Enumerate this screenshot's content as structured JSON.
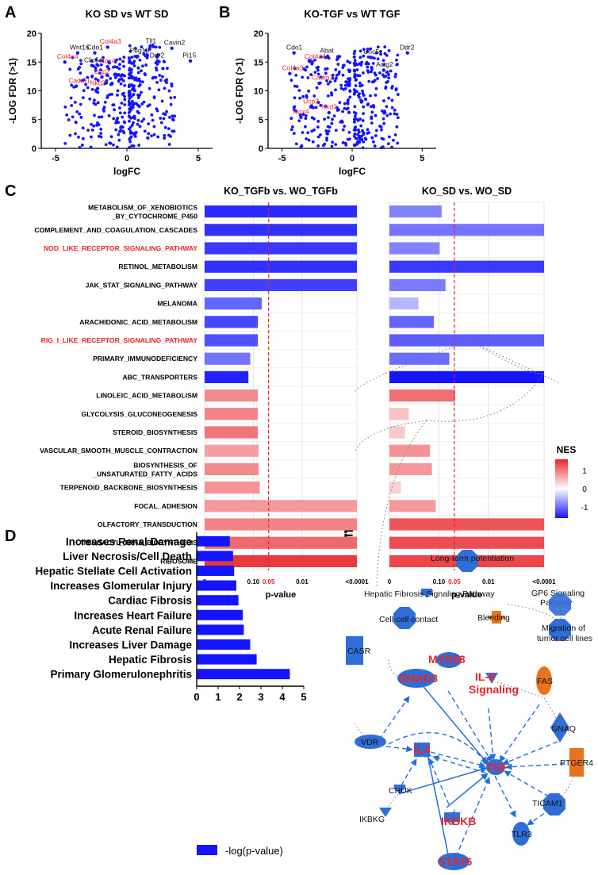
{
  "panel_letters": {
    "a": "A",
    "b": "B",
    "c": "C",
    "d": "D",
    "e": "E"
  },
  "colors": {
    "blue": "#1414ff",
    "red": "#e8242a",
    "grid": "#dcdcdc",
    "node_blue": "#2f6ed6",
    "node_orange": "#e8731a"
  },
  "chart_data": [
    {
      "id": "A",
      "type": "scatter",
      "title": "KO SD vs WT SD",
      "xlabel": "logFC",
      "ylabel": "-LOG FDR (>1)",
      "xlim": [
        -6,
        6
      ],
      "ylim": [
        0,
        20
      ],
      "xticks": [
        -5,
        0,
        5
      ],
      "yticks": [
        0,
        5,
        10,
        15,
        20
      ],
      "labels": [
        {
          "text": "Wnt16",
          "x": -4.0,
          "y": 17.2,
          "color": "black"
        },
        {
          "text": "Cdo1",
          "x": -2.8,
          "y": 17.2,
          "color": "black"
        },
        {
          "text": "Col4a3",
          "x": -1.9,
          "y": 18.2,
          "color": "red"
        },
        {
          "text": "Col4a4",
          "x": -4.9,
          "y": 15.6,
          "color": "red"
        },
        {
          "text": "Clic5",
          "x": -3.0,
          "y": 15.0,
          "color": "black"
        },
        {
          "text": "Nox4",
          "x": -1.9,
          "y": 14.8,
          "color": "red"
        },
        {
          "text": "Ucp2",
          "x": -2.3,
          "y": 13.0,
          "color": "red"
        },
        {
          "text": "Cadm1",
          "x": -4.1,
          "y": 11.4,
          "color": "red"
        },
        {
          "text": "Nkd2",
          "x": -2.6,
          "y": 11.0,
          "color": "red"
        },
        {
          "text": "Tll1",
          "x": 1.3,
          "y": 18.3,
          "color": "black"
        },
        {
          "text": "Cavin2",
          "x": 2.6,
          "y": 18.0,
          "color": "black"
        },
        {
          "text": "Peg10",
          "x": 0.2,
          "y": 16.6,
          "color": "black"
        },
        {
          "text": "Ddr2",
          "x": 1.6,
          "y": 15.8,
          "color": "black"
        },
        {
          "text": "Pi15",
          "x": 3.9,
          "y": 15.8,
          "color": "black"
        }
      ]
    },
    {
      "id": "B",
      "type": "scatter",
      "title": "KO-TGF vs WT TGF",
      "xlabel": "logFC",
      "ylabel": "-LOG FDR (>1)",
      "xlim": [
        -6,
        6
      ],
      "ylim": [
        0,
        20
      ],
      "xticks": [
        -5,
        0,
        5
      ],
      "yticks": [
        0,
        5,
        10,
        15,
        20
      ],
      "labels": [
        {
          "text": "Cdo1",
          "x": -4.7,
          "y": 17.2,
          "color": "black"
        },
        {
          "text": "Abat",
          "x": -2.3,
          "y": 16.6,
          "color": "black"
        },
        {
          "text": "Col4a4",
          "x": -3.4,
          "y": 15.6,
          "color": "red"
        },
        {
          "text": "Col4a3",
          "x": -5.0,
          "y": 13.6,
          "color": "red"
        },
        {
          "text": "Unc5",
          "x": 0.8,
          "y": 16.4,
          "color": "black"
        },
        {
          "text": "Ddr2",
          "x": 3.4,
          "y": 17.2,
          "color": "black"
        },
        {
          "text": "Actg2",
          "x": 1.7,
          "y": 14.2,
          "color": "black"
        },
        {
          "text": "Cadm1",
          "x": -2.9,
          "y": 11.9,
          "color": "red"
        },
        {
          "text": "Ucp2",
          "x": -3.5,
          "y": 7.8,
          "color": "red"
        },
        {
          "text": "Nkd2",
          "x": -2.2,
          "y": 6.8,
          "color": "red"
        },
        {
          "text": "Nox4",
          "x": -4.2,
          "y": 6.0,
          "color": "red"
        }
      ]
    },
    {
      "id": "C",
      "type": "bar",
      "orientation": "horizontal",
      "xlabel": "p-value",
      "xtick_labels": [
        "0",
        "0.10",
        "0.05",
        "0.01",
        "<0.0001"
      ],
      "categories": [
        {
          "name": "METABOLISM_OF_XENOBIOTICS_BY_CYTOCHROME_P450",
          "line1": "METABOLISM_OF_XENOBIOTICS",
          "line2": "_BY_CYTOCHROME_P450",
          "highlight": false
        },
        {
          "name": "COMPLEMENT_AND_COAGULATION_CASCADES",
          "line1": "COMPLEMENT_AND_COAGULATION_CASCADES",
          "line2": "",
          "highlight": false
        },
        {
          "name": "NOD_LIKE_RECEPTOR_SIGNALING_PATHWAY",
          "line1": "NOD_LIKE_RECEPTOR_SIGNALING_PATHWAY",
          "line2": "",
          "highlight": true
        },
        {
          "name": "RETINOL_METABOLISM",
          "line1": "RETINOL_METABOLISM",
          "line2": "",
          "highlight": false
        },
        {
          "name": "JAK_STAT_SIGNALING_PATHWAY",
          "line1": "JAK_STAT_SIGNALING_PATHWAY",
          "line2": "",
          "highlight": false
        },
        {
          "name": "MELANOMA",
          "line1": "MELANOMA",
          "line2": "",
          "highlight": false
        },
        {
          "name": "ARACHIDONIC_ACID_METABOLISM",
          "line1": "ARACHIDONIC_ACID_METABOLISM",
          "line2": "",
          "highlight": false
        },
        {
          "name": "RIG_I_LIKE_RECEPTOR_SIGNALING_PATHWAY",
          "line1": "RIG_I_LIKE_RECEPTOR_SIGNALING_PATHWAY",
          "line2": "",
          "highlight": true
        },
        {
          "name": "PRIMARY_IMMUNODEFICIENCY",
          "line1": "PRIMARY_IMMUNODEFICIENCY",
          "line2": "",
          "highlight": false
        },
        {
          "name": "ABC_TRANSPORTERS",
          "line1": "ABC_TRANSPORTERS",
          "line2": "",
          "highlight": false
        },
        {
          "name": "LINOLEIC_ACID_METABOLISM",
          "line1": "LINOLEIC_ACID_METABOLISM",
          "line2": "",
          "highlight": false
        },
        {
          "name": "GLYCOLYSIS_GLUCONEOGENESIS",
          "line1": "GLYCOLYSIS_GLUCONEOGENESIS",
          "line2": "",
          "highlight": false
        },
        {
          "name": "STEROID_BIOSYNTHESIS",
          "line1": "STEROID_BIOSYNTHESIS",
          "line2": "",
          "highlight": false
        },
        {
          "name": "VASCULAR_SMOOTH_MUSCLE_CONTRACTION",
          "line1": "VASCULAR_SMOOTH_MUSCLE_CONTRACTION",
          "line2": "",
          "highlight": false
        },
        {
          "name": "BIOSYNTHESIS_OF_UNSATURATED_FATTY_ACIDS",
          "line1": "BIOSYNTHESIS_OF",
          "line2": "_UNSATURATED_FATTY_ACIDS",
          "highlight": false
        },
        {
          "name": "TERPENOID_BACKBONE_BIOSYNTHESIS",
          "line1": "TERPENOID_BACKBONE_BIOSYNTHESIS",
          "line2": "",
          "highlight": false
        },
        {
          "name": "FOCAL_ADHESION",
          "line1": "FOCAL_ADHESION",
          "line2": "",
          "highlight": false
        },
        {
          "name": "OLFACTORY_TRANSDUCTION",
          "line1": "OLFACTORY_TRANSDUCTION",
          "line2": "",
          "highlight": false
        },
        {
          "name": "AMINOACYL_TRNA_BIOSYNTHESIS",
          "line1": "AMINOACYL_TRNA_BIOSYNTHESIS",
          "line2": "",
          "highlight": false
        },
        {
          "name": "RIBOSOME",
          "line1": "RIBOSOME",
          "line2": "",
          "highlight": false
        }
      ],
      "series": [
        {
          "name": "KO_TGFb vs. WO_TGFb",
          "values": [
            4.0,
            4.0,
            4.0,
            4.0,
            4.0,
            1.5,
            1.4,
            1.4,
            1.2,
            1.15,
            1.4,
            1.4,
            1.4,
            1.42,
            1.42,
            1.45,
            4.0,
            4.0,
            4.0,
            4.0
          ],
          "nes": [
            -1.45,
            -1.4,
            -1.35,
            -1.4,
            -1.3,
            -1.05,
            -1.25,
            -1.2,
            -0.95,
            -1.5,
            0.85,
            0.9,
            1.0,
            0.7,
            0.85,
            0.8,
            0.75,
            0.9,
            1.1,
            1.45
          ]
        },
        {
          "name": "KO_SD vs. WO_SD",
          "values": [
            1.35,
            4.0,
            1.3,
            4.0,
            1.45,
            0.75,
            1.15,
            4.0,
            1.55,
            4.0,
            1.7,
            0.5,
            0.4,
            1.05,
            1.1,
            0.3,
            1.2,
            4.0,
            4.0,
            4.0
          ],
          "nes": [
            -0.85,
            -0.95,
            -0.85,
            -1.35,
            -0.9,
            -0.5,
            -1.05,
            -1.1,
            -1.0,
            -1.6,
            1.05,
            0.45,
            0.4,
            0.8,
            0.75,
            0.35,
            0.75,
            1.25,
            1.3,
            1.35
          ]
        }
      ],
      "legend": {
        "title": "NES",
        "ticks": [
          "1",
          "0",
          "-1"
        ],
        "position": "right"
      }
    },
    {
      "id": "D",
      "type": "bar",
      "orientation": "horizontal",
      "categories": [
        "Increases Renal Damage",
        "Liver Necrosis/Cell Death",
        "Hepatic Stellate Cell Activation",
        "Increases Glomerular Injury",
        "Cardiac Fibrosis",
        "Increases Heart Failure",
        "Acute Renal Failure",
        "Increases Liver Damage",
        "Hepatic Fibrosis",
        "Primary Glomerulonephritis"
      ],
      "values": [
        1.55,
        1.7,
        1.75,
        1.85,
        1.95,
        2.15,
        2.2,
        2.5,
        2.8,
        4.35
      ],
      "xlim": [
        0,
        5
      ],
      "xticks": [
        "0",
        "1",
        "2",
        "3",
        "4",
        "5"
      ],
      "legend": "-log(p-value)"
    }
  ],
  "network": {
    "labels": {
      "ltp": "Long-term potentiation",
      "gp6a": "GP6 Signaling",
      "gp6b": "Pathway",
      "hfsp": "Hepatic Fibrosis Signaling Pathway",
      "mig1": "Migration of",
      "mig2": "tumor cell lines",
      "ccc": "Cell-cell contact",
      "bleed": "Bleeding",
      "casr": "CASR",
      "myd88": "MYD88",
      "smad3": "SMAD3",
      "il8a": "IL-8",
      "il8b": "Signaling",
      "fas": "FAS",
      "gnaq": "GNAQ",
      "vdr": "VDR",
      "il4": "IL4",
      "tnf": "TNF",
      "ptger4": "PTGER4",
      "chuk": "CHUK",
      "ikbkb": "IKBKB",
      "ticam1": "TICAM1",
      "ikbkg": "IKBKG",
      "stat6": "STAT6",
      "tlr3": "TLR3"
    }
  }
}
